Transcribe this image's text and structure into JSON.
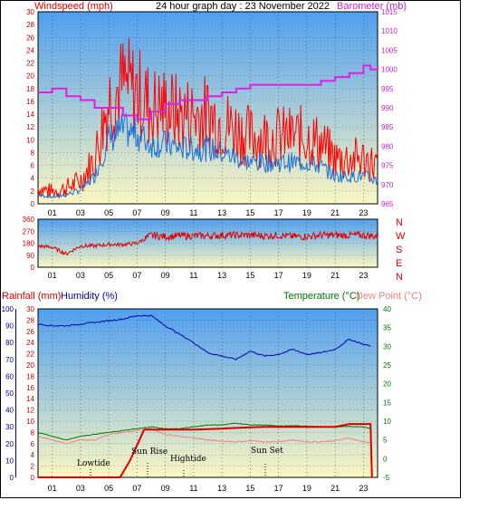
{
  "colors": {
    "wind": "#ff0000",
    "gust": "#ff0000",
    "avg_wind": "#1e6fd9",
    "barometer": "#e020e0",
    "direction": "#dd0000",
    "rain": "#dd0000",
    "humidity": "#0000aa",
    "temperature": "#007700",
    "dew_point": "#f08080",
    "bg_top": "#4aa0f0",
    "bg_bottom": "#fbf5c0"
  },
  "header": {
    "wind_label": "Windspeed (mph)",
    "title": "24 hour graph day : 23 November 2022",
    "baro_label": "Barometer (mb)"
  },
  "x_ticks": [
    "01",
    "03",
    "05",
    "07",
    "09",
    "11",
    "13",
    "15",
    "17",
    "19",
    "21",
    "23"
  ],
  "compass": [
    "N",
    "W",
    "S",
    "E",
    "N"
  ],
  "panel3_labels": {
    "rain": "Rainfall (mm)",
    "humidity": "Humidity (%)",
    "temperature": "Temperature (°C)",
    "dew": "Dew Point (°C)"
  },
  "annotations": {
    "lowtide": "Lowtide",
    "sunrise": "Sun Rise",
    "hightide": "Hightide",
    "sunset": "Sun Set"
  },
  "chart_data": [
    {
      "type": "line",
      "title": "24 hour graph day : 23 November 2022",
      "xlabel": "",
      "ylabel": "Windspeed (mph)",
      "ylabel_right": "Barometer (mb)",
      "x_ticks": [
        "01",
        "03",
        "05",
        "07",
        "09",
        "11",
        "13",
        "15",
        "17",
        "19",
        "21",
        "23"
      ],
      "ylim": [
        0,
        30
      ],
      "ylim_right": [
        965,
        1015
      ],
      "y_ticks": [
        0,
        2,
        4,
        6,
        8,
        10,
        12,
        14,
        16,
        18,
        20,
        22,
        24,
        26,
        28,
        30
      ],
      "y_ticks_right": [
        965,
        970,
        975,
        980,
        985,
        990,
        995,
        1000,
        1005,
        1010,
        1015
      ],
      "grid": true,
      "series": [
        {
          "name": "Windspeed (mph)",
          "axis": "left",
          "x": [
            0,
            1,
            2,
            3,
            4,
            5,
            6,
            7,
            8,
            9,
            10,
            11,
            12,
            13,
            14,
            15,
            16,
            17,
            18,
            19,
            20,
            21,
            22,
            23,
            24
          ],
          "values": [
            2,
            1.5,
            2,
            3,
            6,
            14,
            16,
            15,
            13,
            13,
            12,
            12,
            12,
            11,
            10,
            9,
            9,
            9,
            9,
            9,
            8,
            6,
            6,
            6,
            5
          ]
        },
        {
          "name": "Barometer (mb)",
          "axis": "right",
          "x": [
            0,
            0.5,
            1,
            2,
            3,
            4,
            5,
            6,
            7,
            8,
            9,
            10,
            11,
            12,
            13,
            14,
            15,
            16,
            17,
            18,
            19,
            20,
            21,
            22,
            23,
            23.5,
            24
          ],
          "values": [
            994,
            994,
            995,
            993,
            992,
            990,
            990,
            988,
            987,
            989,
            991,
            992,
            992,
            993,
            994,
            995,
            996,
            996,
            996,
            996,
            996,
            997,
            998,
            999,
            1001,
            1000,
            1001
          ]
        }
      ]
    },
    {
      "type": "scatter",
      "xlabel": "",
      "ylabel": "",
      "x_ticks": [
        "01",
        "03",
        "05",
        "07",
        "09",
        "11",
        "13",
        "15",
        "17",
        "19",
        "21",
        "23"
      ],
      "ylim": [
        0,
        360
      ],
      "y_ticks": [
        0,
        90,
        180,
        270,
        360
      ],
      "grid": true,
      "series": [
        {
          "name": "",
          "x": [
            0,
            1,
            2,
            3,
            4,
            5,
            6,
            7,
            8,
            9,
            10,
            11,
            12,
            13,
            14,
            15,
            16,
            17,
            18,
            19,
            20,
            21,
            22,
            23,
            24
          ],
          "values": [
            160,
            150,
            100,
            160,
            160,
            170,
            170,
            180,
            240,
            230,
            235,
            235,
            235,
            240,
            240,
            240,
            235,
            240,
            230,
            230,
            240,
            240,
            240,
            240,
            230
          ]
        }
      ]
    },
    {
      "type": "line",
      "xlabel": "",
      "ylabel": "Rainfall (mm)",
      "ylabel_2": "Humidity (%)",
      "ylabel_right": "Temperature (°C)",
      "ylabel_right_2": "Dew Point (°C)",
      "x_ticks": [
        "01",
        "03",
        "05",
        "07",
        "09",
        "11",
        "13",
        "15",
        "17",
        "19",
        "21",
        "23"
      ],
      "ylim_rain": [
        0,
        30
      ],
      "y_ticks_rain": [
        0,
        2,
        4,
        6,
        8,
        10,
        12,
        14,
        16,
        18,
        20,
        22,
        24,
        26,
        28,
        30
      ],
      "ylim_humidity": [
        0,
        100
      ],
      "y_ticks_humidity": [
        0,
        10,
        20,
        30,
        40,
        50,
        60,
        70,
        80,
        90,
        100
      ],
      "ylim_temperature": [
        -5,
        40
      ],
      "y_ticks_temperature": [
        -5,
        0,
        5,
        10,
        15,
        20,
        25,
        30,
        35,
        40
      ],
      "grid": true,
      "series": [
        {
          "name": "Rainfall (mm)",
          "axis": "rain",
          "x": [
            0,
            1,
            2,
            3,
            4,
            5,
            5.8,
            6.5,
            7.5,
            8,
            9,
            10,
            11,
            12,
            13,
            14,
            15,
            16,
            17,
            18,
            19,
            20,
            21,
            22,
            23,
            23.5,
            23.6
          ],
          "values": [
            0,
            0,
            0,
            0,
            0,
            0,
            0,
            3,
            8.5,
            8.5,
            8.5,
            8.5,
            8.5,
            8.6,
            8.7,
            8.8,
            8.9,
            9,
            9,
            9,
            9,
            9,
            9,
            9.5,
            9.5,
            9.5,
            0
          ]
        },
        {
          "name": "Humidity (%)",
          "axis": "humidity",
          "x": [
            0,
            1,
            2,
            3,
            4,
            5,
            6,
            7,
            8,
            9,
            10,
            11,
            12,
            13,
            14,
            15,
            16,
            17,
            18,
            19,
            20,
            21,
            22,
            23,
            23.5
          ],
          "values": [
            91,
            90,
            90,
            91,
            92,
            93,
            94,
            96,
            96,
            90,
            85,
            80,
            74,
            72,
            70,
            75,
            72,
            73,
            76,
            73,
            74,
            76,
            82,
            79,
            78
          ]
        },
        {
          "name": "Temperature (°C)",
          "axis": "temperature",
          "x": [
            0,
            1,
            2,
            3,
            4,
            5,
            6,
            7,
            8,
            9,
            10,
            11,
            12,
            13,
            14,
            15,
            16,
            17,
            18,
            19,
            20,
            21,
            22,
            23,
            23.5
          ],
          "values": [
            7,
            6,
            5,
            6,
            6.5,
            7,
            7.5,
            8,
            8.5,
            8,
            8,
            8.5,
            9,
            9,
            9.5,
            9,
            9,
            8.7,
            8.8,
            8.7,
            8.5,
            8.5,
            8.6,
            8.5,
            8
          ]
        },
        {
          "name": "Dew Point (°C)",
          "axis": "temperature",
          "x": [
            0,
            1,
            2,
            3,
            4,
            5,
            6,
            7,
            8,
            9,
            10,
            11,
            12,
            13,
            14,
            15,
            16,
            17,
            18,
            19,
            20,
            21,
            22,
            23,
            23.5
          ],
          "values": [
            6,
            5,
            4,
            5,
            5,
            6.5,
            7,
            7.5,
            8,
            6.5,
            6,
            5.5,
            5,
            4.7,
            4.5,
            4.8,
            4.5,
            4.5,
            5,
            4.5,
            4.5,
            4.8,
            5.5,
            4.5,
            4.2
          ]
        }
      ]
    }
  ]
}
